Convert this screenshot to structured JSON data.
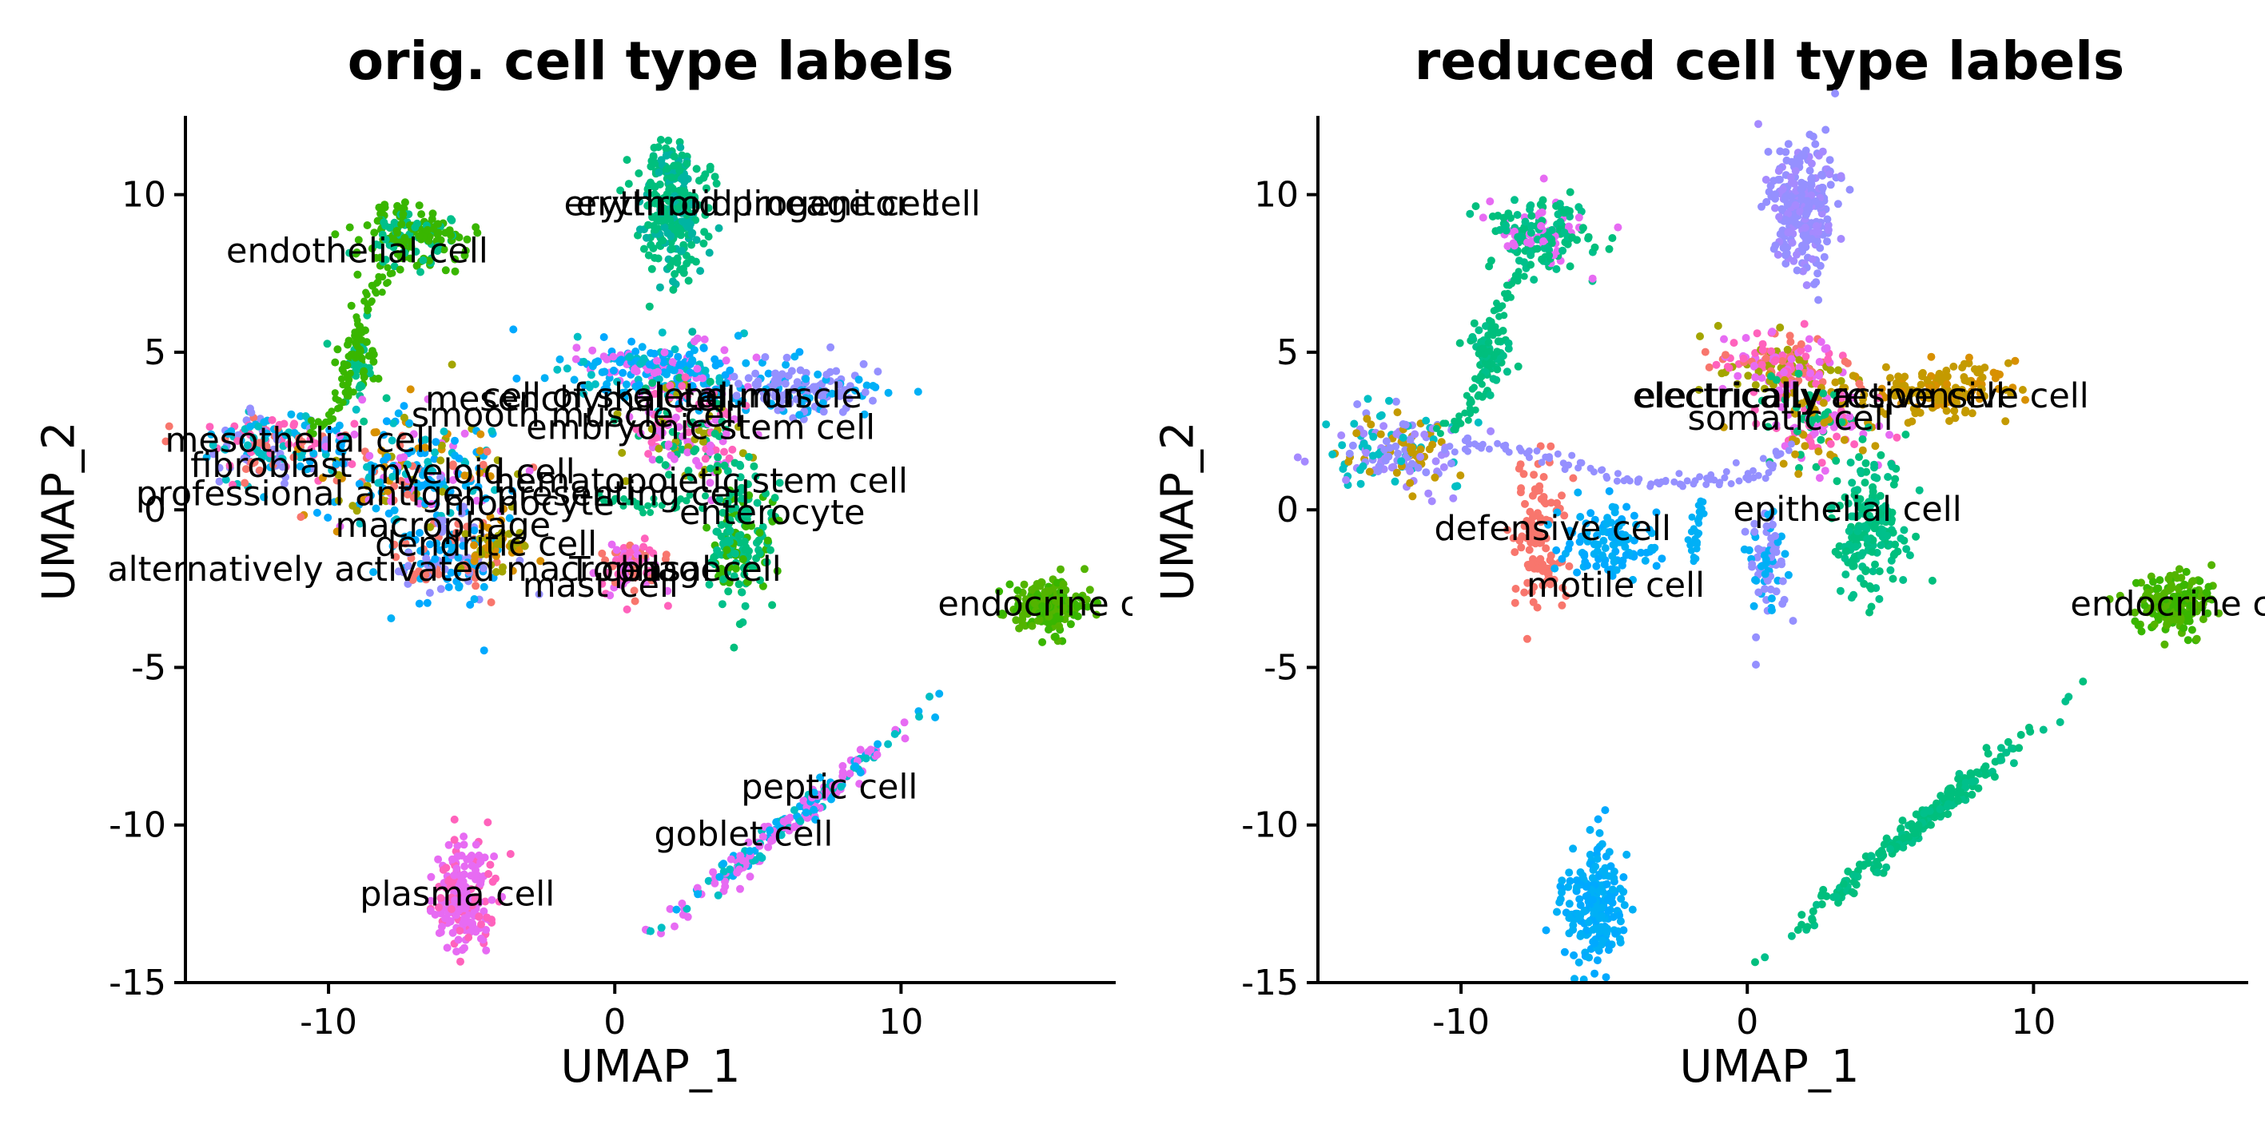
{
  "chart_data": [
    {
      "type": "scatter",
      "title": "orig. cell type labels",
      "xlabel": "UMAP_1",
      "ylabel": "UMAP_2",
      "xlim": [
        -15,
        17.5
      ],
      "ylim": [
        -15,
        12.5
      ],
      "xticks": [
        -10,
        0,
        10
      ],
      "yticks": [
        -15,
        -10,
        -5,
        0,
        5,
        10
      ],
      "xtick_labels": [
        "-10",
        "0",
        "10"
      ],
      "ytick_labels": [
        "-15",
        "-10",
        "-5",
        "0",
        "5",
        "10"
      ],
      "grid": false,
      "legend": "none",
      "clusters": [
        {
          "cx": 2.0,
          "cy": 9.5,
          "sx": 0.55,
          "sy": 1.1,
          "n": 260,
          "colors": [
            "#00BF7D",
            "#00BF7D",
            "#00B4A2"
          ]
        },
        {
          "cx": -7.3,
          "cy": 8.7,
          "sx": 1.0,
          "sy": 0.55,
          "n": 170,
          "colors": [
            "#39B600",
            "#00C08B",
            "#39B600"
          ]
        },
        {
          "cx": -9.0,
          "cy": 4.8,
          "sx": 0.35,
          "sy": 0.6,
          "n": 60,
          "colors": [
            "#39B600",
            "#00C08B"
          ]
        },
        {
          "cx": 1.5,
          "cy": 4.4,
          "sx": 1.6,
          "sy": 0.5,
          "n": 220,
          "colors": [
            "#00B0F6",
            "#00A9FF",
            "#E76BF3",
            "#00BFC4"
          ]
        },
        {
          "cx": 6.8,
          "cy": 3.8,
          "sx": 1.3,
          "sy": 0.4,
          "n": 140,
          "colors": [
            "#9590FF",
            "#9590FF",
            "#00B0F6"
          ]
        },
        {
          "cx": 2.5,
          "cy": 2.5,
          "sx": 1.1,
          "sy": 0.8,
          "n": 160,
          "colors": [
            "#FF62BC",
            "#E76BF3",
            "#00BF7D",
            "#A3A500"
          ]
        },
        {
          "cx": 4.4,
          "cy": -0.8,
          "sx": 0.6,
          "sy": 1.1,
          "n": 170,
          "colors": [
            "#00BF7D",
            "#00C08B",
            "#39B600"
          ]
        },
        {
          "cx": -12.0,
          "cy": 2.0,
          "sx": 1.2,
          "sy": 0.6,
          "n": 160,
          "colors": [
            "#00B4F0",
            "#9590FF",
            "#F8766D",
            "#FF62BC",
            "#00BFC4"
          ]
        },
        {
          "cx": -7.0,
          "cy": 1.2,
          "sx": 1.7,
          "sy": 0.9,
          "n": 240,
          "colors": [
            "#00BFC4",
            "#00A9FF",
            "#F8766D",
            "#E76BF3",
            "#A3A500",
            "#D89000",
            "#00B0F6"
          ]
        },
        {
          "cx": -5.8,
          "cy": -1.6,
          "sx": 1.0,
          "sy": 0.8,
          "n": 130,
          "colors": [
            "#00A9FF",
            "#00B0F6",
            "#F8766D",
            "#9590FF"
          ]
        },
        {
          "cx": -4.0,
          "cy": -1.2,
          "sx": 0.6,
          "sy": 0.5,
          "n": 50,
          "colors": [
            "#A3A500",
            "#D89000"
          ]
        },
        {
          "cx": 0.5,
          "cy": -1.9,
          "sx": 0.55,
          "sy": 0.5,
          "n": 80,
          "colors": [
            "#F8766D",
            "#FF62BC",
            "#E76BF3"
          ]
        },
        {
          "cx": 15.0,
          "cy": -3.0,
          "sx": 0.65,
          "sy": 0.45,
          "n": 190,
          "colors": [
            "#53B400",
            "#39B600"
          ]
        },
        {
          "cx": 6.0,
          "cy": -10.0,
          "sx": 2.0,
          "sy": 1.3,
          "n": 220,
          "colors": [
            "#E76BF3",
            "#00BFC4",
            "#00B0F6",
            "#E76BF3"
          ],
          "slope": 0.75
        },
        {
          "cx": -5.3,
          "cy": -12.4,
          "sx": 0.55,
          "sy": 0.9,
          "n": 200,
          "colors": [
            "#E76BF3",
            "#E76BF3",
            "#FF62BC"
          ]
        }
      ],
      "trails": [
        {
          "points": [
            [
              -7.9,
              7.6
            ],
            [
              -8.5,
              6.8
            ],
            [
              -9.0,
              5.6
            ],
            [
              -9.3,
              4.2
            ],
            [
              -9.8,
              3.0
            ],
            [
              -10.8,
              2.5
            ]
          ],
          "color": "#39B600"
        },
        {
          "points": [
            [
              -0.5,
              0.5
            ],
            [
              1.2,
              0.0
            ],
            [
              3.0,
              0.5
            ]
          ],
          "color": "#00BF7D"
        }
      ],
      "annotations": [
        {
          "x": 5.0,
          "y": 9.7,
          "text": "erythroid lineage cell"
        },
        {
          "x": 5.5,
          "y": 9.7,
          "text": "erythroid progenitor cell"
        },
        {
          "x": -9.0,
          "y": 8.2,
          "text": "endothelial cell"
        },
        {
          "x": -1.2,
          "y": 3.5,
          "text": "mesenchymal cell"
        },
        {
          "x": 2.0,
          "y": 3.6,
          "text": "cell of skeletal muscle"
        },
        {
          "x": 4.5,
          "y": 3.6,
          "text": "neuron"
        },
        {
          "x": -1.3,
          "y": 3.0,
          "text": "smooth muscle cell"
        },
        {
          "x": 3.0,
          "y": 2.6,
          "text": "embryonic stem cell"
        },
        {
          "x": -11.0,
          "y": 2.2,
          "text": "mesothelial cell"
        },
        {
          "x": -12.0,
          "y": 1.4,
          "text": "fibroblast"
        },
        {
          "x": -5.0,
          "y": 1.2,
          "text": "myeloid cell"
        },
        {
          "x": 3.0,
          "y": 0.9,
          "text": "hematopoietic stem cell"
        },
        {
          "x": -6.0,
          "y": 0.5,
          "text": "professional antigen presenting cell"
        },
        {
          "x": -3.0,
          "y": 0.2,
          "text": "monocyte"
        },
        {
          "x": 5.5,
          "y": -0.1,
          "text": "enterocyte"
        },
        {
          "x": -6.0,
          "y": -0.5,
          "text": "macrophage"
        },
        {
          "x": -4.5,
          "y": -1.1,
          "text": "dendritic cell"
        },
        {
          "x": -7.0,
          "y": -1.9,
          "text": "alternatively activated macrophage"
        },
        {
          "x": 0.0,
          "y": -1.9,
          "text": "T cell"
        },
        {
          "x": 3.0,
          "y": -1.9,
          "text": "basal cell"
        },
        {
          "x": -0.5,
          "y": -2.4,
          "text": "mast cell"
        },
        {
          "x": 15.5,
          "y": -3.0,
          "text": "endocrine cell"
        },
        {
          "x": 7.5,
          "y": -8.8,
          "text": "peptic cell"
        },
        {
          "x": 4.5,
          "y": -10.3,
          "text": "goblet cell"
        },
        {
          "x": -5.5,
          "y": -12.2,
          "text": "plasma cell"
        }
      ]
    },
    {
      "type": "scatter",
      "title": "reduced cell type labels",
      "xlabel": "UMAP_1",
      "ylabel": "UMAP_2",
      "xlim": [
        -15,
        17.5
      ],
      "ylim": [
        -15,
        12.5
      ],
      "xticks": [
        -10,
        0,
        10
      ],
      "yticks": [
        -15,
        -10,
        -5,
        0,
        5,
        10
      ],
      "xtick_labels": [
        "-10",
        "0",
        "10"
      ],
      "ytick_labels": [
        "-15",
        "-10",
        "-5",
        "0",
        "5",
        "10"
      ],
      "grid": false,
      "legend": "none",
      "clusters": [
        {
          "cx": 2.0,
          "cy": 9.6,
          "sx": 0.55,
          "sy": 1.1,
          "n": 260,
          "colors": [
            "#9590FF",
            "#9590FF",
            "#A58AFF"
          ]
        },
        {
          "cx": -7.3,
          "cy": 8.7,
          "sx": 1.0,
          "sy": 0.55,
          "n": 170,
          "colors": [
            "#00BF7D",
            "#00C08B",
            "#E76BF3"
          ]
        },
        {
          "cx": -9.0,
          "cy": 4.8,
          "sx": 0.35,
          "sy": 0.6,
          "n": 60,
          "colors": [
            "#00BF7D",
            "#00C08B"
          ]
        },
        {
          "cx": 1.2,
          "cy": 4.6,
          "sx": 1.1,
          "sy": 0.5,
          "n": 180,
          "colors": [
            "#FF62BC",
            "#E76BF3",
            "#F8766D",
            "#A3A500"
          ]
        },
        {
          "cx": 7.0,
          "cy": 3.8,
          "sx": 1.3,
          "sy": 0.4,
          "n": 150,
          "colors": [
            "#C49A00",
            "#C49A00",
            "#D89000"
          ]
        },
        {
          "cx": 2.5,
          "cy": 2.8,
          "sx": 1.0,
          "sy": 0.8,
          "n": 150,
          "colors": [
            "#FF62BC",
            "#E76BF3",
            "#00BF7D",
            "#C49A00"
          ]
        },
        {
          "cx": 4.3,
          "cy": -0.6,
          "sx": 0.6,
          "sy": 1.2,
          "n": 180,
          "colors": [
            "#00BF7D",
            "#00C08B"
          ]
        },
        {
          "cx": -12.2,
          "cy": 1.8,
          "sx": 1.2,
          "sy": 0.6,
          "n": 170,
          "colors": [
            "#9590FF",
            "#A58AFF",
            "#C49A00",
            "#00BFC4"
          ]
        },
        {
          "cx": -7.3,
          "cy": -0.9,
          "sx": 0.5,
          "sy": 1.1,
          "n": 110,
          "colors": [
            "#F8766D",
            "#F8766D"
          ]
        },
        {
          "cx": -4.7,
          "cy": -1.0,
          "sx": 0.9,
          "sy": 0.6,
          "n": 110,
          "colors": [
            "#00B0F6",
            "#00A9FF"
          ]
        },
        {
          "cx": 0.6,
          "cy": -1.8,
          "sx": 0.4,
          "sy": 0.9,
          "n": 80,
          "colors": [
            "#00B0F6",
            "#9590FF"
          ]
        },
        {
          "cx": 15.0,
          "cy": -3.0,
          "sx": 0.65,
          "sy": 0.45,
          "n": 190,
          "colors": [
            "#53B400",
            "#39B600"
          ]
        },
        {
          "cx": 6.0,
          "cy": -10.0,
          "sx": 2.0,
          "sy": 1.3,
          "n": 230,
          "colors": [
            "#00BF7D",
            "#00C08B",
            "#00BF7D"
          ],
          "slope": 0.75
        },
        {
          "cx": -5.3,
          "cy": -12.4,
          "sx": 0.55,
          "sy": 0.9,
          "n": 200,
          "colors": [
            "#00B0F6",
            "#00A9FF"
          ]
        }
      ],
      "trails": [
        {
          "points": [
            [
              -7.9,
              7.6
            ],
            [
              -8.5,
              6.8
            ],
            [
              -9.0,
              5.6
            ],
            [
              -9.3,
              4.2
            ],
            [
              -9.8,
              3.0
            ],
            [
              -10.8,
              2.4
            ]
          ],
          "color": "#00BF7D"
        },
        {
          "points": [
            [
              -10.5,
              2.0
            ],
            [
              -8.5,
              2.0
            ],
            [
              -6.5,
              1.6
            ],
            [
              -4.5,
              1.0
            ],
            [
              -2.5,
              0.8
            ],
            [
              -1.0,
              1.0
            ],
            [
              0.5,
              1.2
            ],
            [
              1.5,
              2.0
            ]
          ],
          "color": "#9590FF"
        },
        {
          "points": [
            [
              -1.5,
              0.2
            ],
            [
              -2.0,
              -0.8
            ],
            [
              -1.8,
              -1.5
            ]
          ],
          "color": "#00B0F6"
        }
      ],
      "annotations": [
        {
          "x": 4.0,
          "y": 3.6,
          "text": "electrically responsive cell"
        },
        {
          "x": 2.5,
          "y": 3.6,
          "text": "electrically active cell"
        },
        {
          "x": 1.5,
          "y": 2.9,
          "text": "somatic cell"
        },
        {
          "x": 3.5,
          "y": 0.0,
          "text": "epithelial cell"
        },
        {
          "x": -6.8,
          "y": -0.6,
          "text": "defensive cell"
        },
        {
          "x": -4.6,
          "y": -2.4,
          "text": "motile cell"
        },
        {
          "x": 15.5,
          "y": -3.0,
          "text": "endocrine cell"
        }
      ]
    }
  ]
}
